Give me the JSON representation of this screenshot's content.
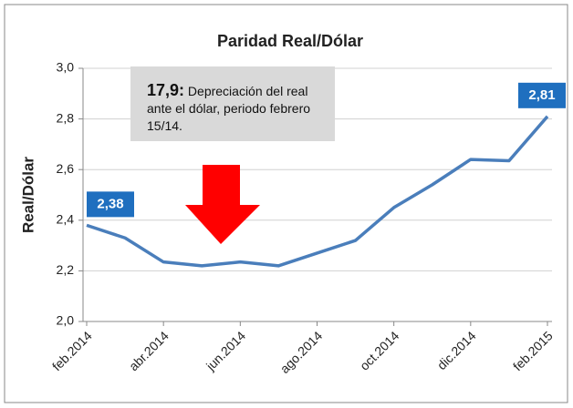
{
  "chart_data": {
    "type": "line",
    "title": "Paridad Real/Dólar",
    "y_label": "Real/Dólar",
    "categories": [
      "feb.2014",
      null,
      "abr.2014",
      null,
      "jun.2014",
      null,
      "ago.2014",
      null,
      "oct.2014",
      null,
      "dic.2014",
      null,
      "feb.2015"
    ],
    "values": [
      2.38,
      2.33,
      2.235,
      2.22,
      2.235,
      2.22,
      2.27,
      2.32,
      2.45,
      2.54,
      2.64,
      2.635,
      2.81
    ],
    "value_labels": [
      "2,38",
      null,
      null,
      null,
      null,
      null,
      null,
      null,
      null,
      null,
      null,
      null,
      "2,81"
    ],
    "color": "#4a7ebb",
    "label_color": "#1f6fbf",
    "ylim": [
      2.0,
      3.0
    ],
    "yticks": [
      {
        "value": 2.0,
        "label": "2,0"
      },
      {
        "value": 2.2,
        "label": "2,2"
      },
      {
        "value": 2.4,
        "label": "2,4"
      },
      {
        "value": 2.6,
        "label": "2,6"
      },
      {
        "value": 2.8,
        "label": "2,8"
      },
      {
        "value": 3.0,
        "label": "3,0"
      }
    ],
    "grid": true,
    "annotation": {
      "highlight": "17,9:",
      "text": "Depreciación del real ante el dólar, periodo febrero 15/14."
    }
  }
}
